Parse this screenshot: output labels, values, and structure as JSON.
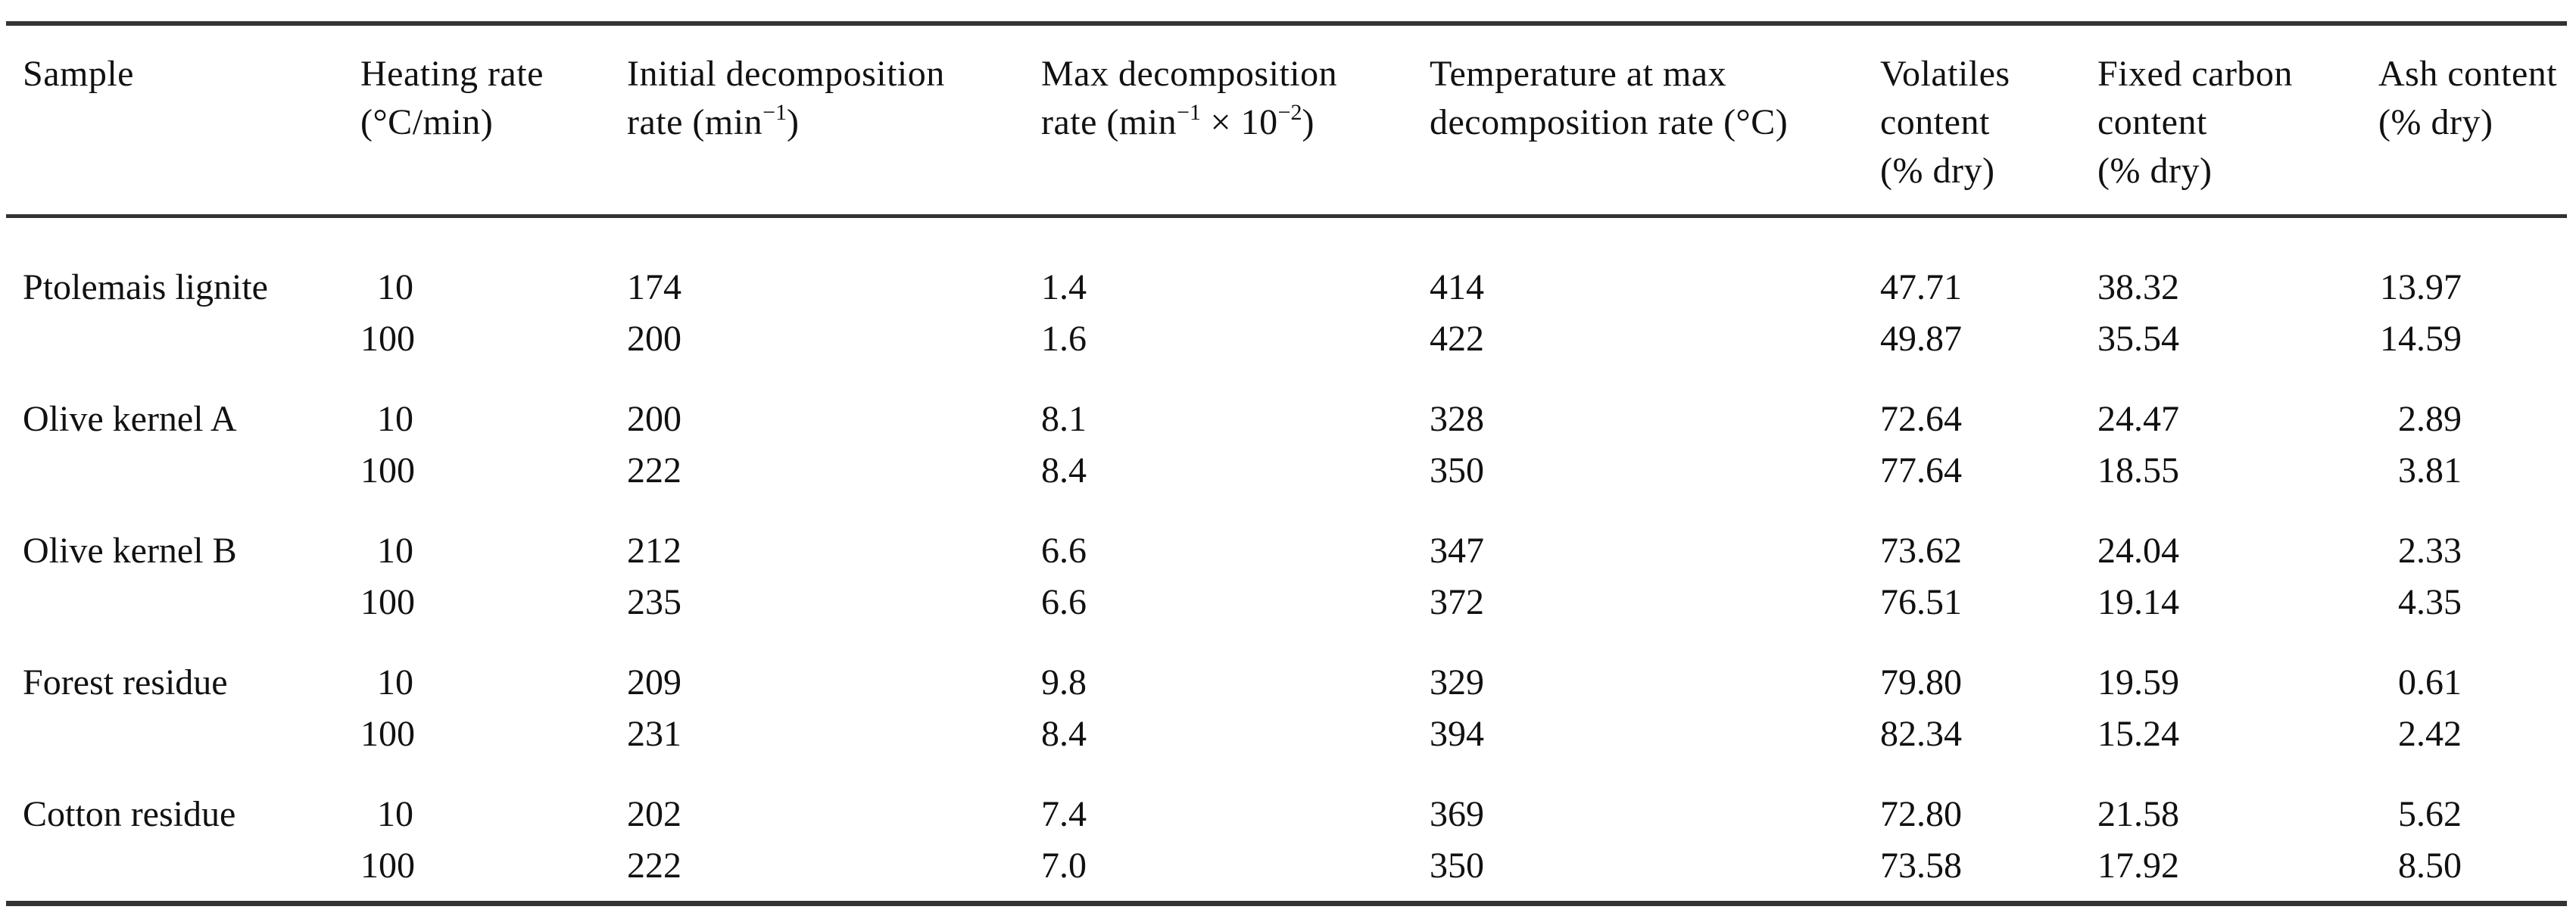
{
  "colors": {
    "rule": "#333333",
    "text": "#111111",
    "background": "#ffffff"
  },
  "table": {
    "header": {
      "sample": "Sample",
      "heating_l1": "Heating rate",
      "heating_l2": "(°C/min)",
      "initial_l1": "Initial decomposition",
      "initial_l2a": "rate (min",
      "initial_l2sup": "−1",
      "initial_l2b": ")",
      "max_l1": "Max decomposition",
      "max_l2a": "rate (min",
      "max_l2sup1": "−1",
      "max_l2b": " × 10",
      "max_l2sup2": "−2",
      "max_l2c": ")",
      "temp_l1": "Temperature at max",
      "temp_l2": "decomposition rate (°C)",
      "volatiles_l1": "Volatiles",
      "volatiles_l2": "content",
      "volatiles_l3": "(% dry)",
      "fixed_l1": "Fixed carbon",
      "fixed_l2": "content",
      "fixed_l3": "(% dry)",
      "ash_l1": "Ash content",
      "ash_l2": "(% dry)"
    },
    "rows": [
      {
        "sample": "Ptolemais lignite",
        "heating_rate": "10",
        "initial_rate": "174",
        "max_rate": "1.4",
        "temp_max": "414",
        "volatiles": "47.71",
        "fixed_carbon": "38.32",
        "ash": "13.97"
      },
      {
        "sample": "",
        "heating_rate": "100",
        "initial_rate": "200",
        "max_rate": "1.6",
        "temp_max": "422",
        "volatiles": "49.87",
        "fixed_carbon": "35.54",
        "ash": "14.59"
      },
      {
        "sample": "Olive kernel A",
        "heating_rate": "10",
        "initial_rate": "200",
        "max_rate": "8.1",
        "temp_max": "328",
        "volatiles": "72.64",
        "fixed_carbon": "24.47",
        "ash": "2.89"
      },
      {
        "sample": "",
        "heating_rate": "100",
        "initial_rate": "222",
        "max_rate": "8.4",
        "temp_max": "350",
        "volatiles": "77.64",
        "fixed_carbon": "18.55",
        "ash": "3.81"
      },
      {
        "sample": "Olive kernel B",
        "heating_rate": "10",
        "initial_rate": "212",
        "max_rate": "6.6",
        "temp_max": "347",
        "volatiles": "73.62",
        "fixed_carbon": "24.04",
        "ash": "2.33"
      },
      {
        "sample": "",
        "heating_rate": "100",
        "initial_rate": "235",
        "max_rate": "6.6",
        "temp_max": "372",
        "volatiles": "76.51",
        "fixed_carbon": "19.14",
        "ash": "4.35"
      },
      {
        "sample": "Forest residue",
        "heating_rate": "10",
        "initial_rate": "209",
        "max_rate": "9.8",
        "temp_max": "329",
        "volatiles": "79.80",
        "fixed_carbon": "19.59",
        "ash": "0.61"
      },
      {
        "sample": "",
        "heating_rate": "100",
        "initial_rate": "231",
        "max_rate": "8.4",
        "temp_max": "394",
        "volatiles": "82.34",
        "fixed_carbon": "15.24",
        "ash": "2.42"
      },
      {
        "sample": "Cotton residue",
        "heating_rate": "10",
        "initial_rate": "202",
        "max_rate": "7.4",
        "temp_max": "369",
        "volatiles": "72.80",
        "fixed_carbon": "21.58",
        "ash": "5.62"
      },
      {
        "sample": "",
        "heating_rate": "100",
        "initial_rate": "222",
        "max_rate": "7.0",
        "temp_max": "350",
        "volatiles": "73.58",
        "fixed_carbon": "17.92",
        "ash": "8.50"
      }
    ]
  }
}
